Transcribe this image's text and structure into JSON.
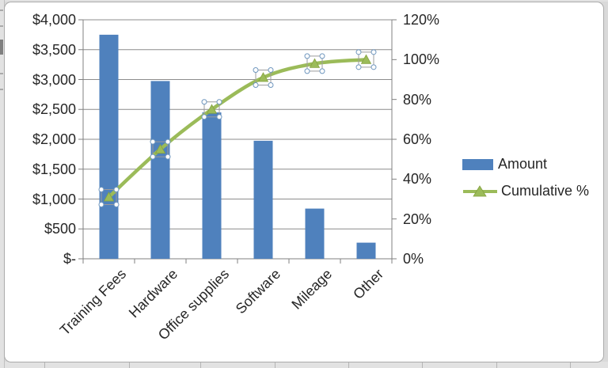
{
  "chart_data": {
    "type": "bar",
    "subtype": "pareto-combo (clustered bars + smooth line with triangle markers)",
    "title": "",
    "categories": [
      "Training Fees",
      "Hardware",
      "Office supplies",
      "Software",
      "Mileage",
      "Other"
    ],
    "series": [
      {
        "name": "Amount",
        "chart_type": "bar",
        "axis": "left",
        "values": [
          3750,
          2975,
          2450,
          1975,
          840,
          270
        ]
      },
      {
        "name": "Cumulative %",
        "chart_type": "line",
        "axis": "right",
        "values": [
          31,
          55,
          75,
          91,
          98,
          100
        ],
        "marker": "triangle",
        "smooth": true,
        "points_selected": true
      }
    ],
    "left_axis": {
      "min": 0,
      "max": 4000,
      "step": 500,
      "ticks": [
        "$4,000",
        "$3,500",
        "$3,000",
        "$2,500",
        "$2,000",
        "$1,500",
        "$1,000",
        "$500",
        "$-"
      ]
    },
    "right_axis": {
      "min": 0,
      "max": 120,
      "step": 20,
      "ticks": [
        "120%",
        "100%",
        "80%",
        "60%",
        "40%",
        "20%",
        "0%"
      ]
    },
    "grid": true,
    "legend_position": "right"
  },
  "legend": {
    "items": [
      {
        "label": "Amount"
      },
      {
        "label": "Cumulative %"
      }
    ]
  },
  "colors": {
    "bar": "#4F81BD",
    "line": "#9BBB59",
    "marker_fill": "#9BBB59",
    "marker_edge": "#85A23F",
    "grid": "#8C8C8C",
    "axis": "#808080",
    "text": "#262626",
    "frame_border": "#ABABAB",
    "page_bg": "#D9D9D9",
    "selection_box": "#9C9C9C",
    "handle_stroke": "#6E96BE",
    "handle_fill": "#FFFFFF"
  }
}
